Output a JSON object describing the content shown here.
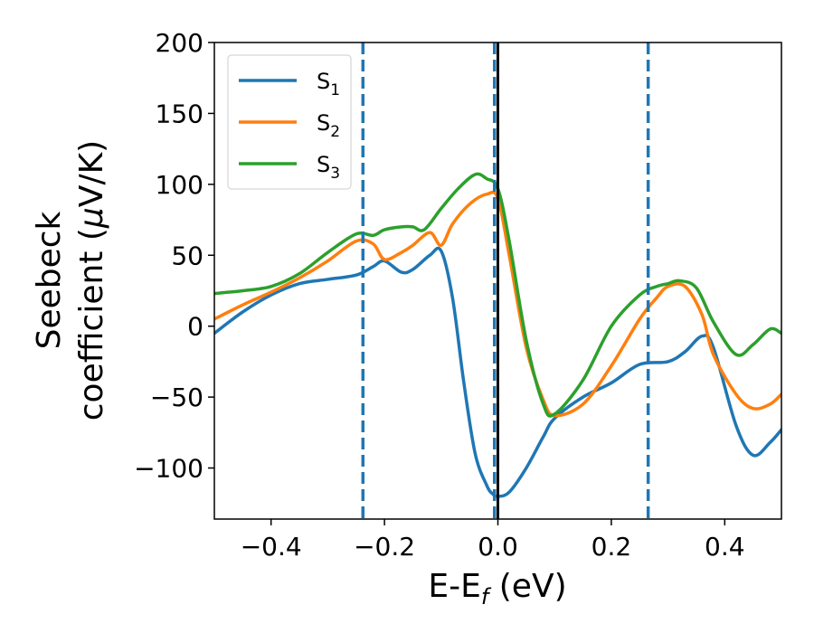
{
  "chart_data": {
    "type": "line",
    "xlabel": "E-E",
    "xlabel_sub": "f",
    "xlabel_unit": " (eV)",
    "ylabel_line1": "Seebeck",
    "ylabel_line2": "coefficient  (",
    "ylabel_mu": "μ",
    "ylabel_unit": "V/K)",
    "xlim": [
      -0.5,
      0.5
    ],
    "ylim": [
      -136,
      200
    ],
    "xticks": [
      -0.4,
      -0.2,
      0.0,
      0.2,
      0.4
    ],
    "xtick_labels": [
      "−0.4",
      "−0.2",
      "0.0",
      "0.2",
      "0.4"
    ],
    "yticks": [
      -100,
      -50,
      0,
      50,
      100,
      150,
      200
    ],
    "ytick_labels": [
      "−100",
      "−50",
      "0",
      "50",
      "100",
      "150",
      "200"
    ],
    "grid": false,
    "legend_position": "top-left",
    "vlines": [
      {
        "x": -0.238,
        "style": "dashed",
        "color": "#1f77b4"
      },
      {
        "x": -0.006,
        "style": "dashed",
        "color": "#1f77b4"
      },
      {
        "x": 0.0,
        "style": "solid",
        "color": "#000000"
      },
      {
        "x": 0.265,
        "style": "dashed",
        "color": "#1f77b4"
      }
    ],
    "series": [
      {
        "name": "S",
        "sub": "1",
        "color": "#1f77b4",
        "x": [
          -0.5,
          -0.45,
          -0.4,
          -0.35,
          -0.3,
          -0.25,
          -0.22,
          -0.2,
          -0.17,
          -0.15,
          -0.12,
          -0.1,
          -0.08,
          -0.06,
          -0.04,
          -0.02,
          -0.01,
          0.0,
          0.02,
          0.05,
          0.08,
          0.1,
          0.15,
          0.2,
          0.25,
          0.3,
          0.33,
          0.36,
          0.38,
          0.42,
          0.45,
          0.48,
          0.5
        ],
        "y": [
          -5,
          10,
          22,
          30,
          33,
          36,
          42,
          46,
          38,
          40,
          50,
          53,
          20,
          -40,
          -90,
          -112,
          -118,
          -120,
          -117,
          -100,
          -78,
          -65,
          -50,
          -40,
          -27,
          -25,
          -18,
          -7,
          -15,
          -70,
          -91,
          -82,
          -73
        ]
      },
      {
        "name": "S",
        "sub": "2",
        "color": "#ff7f0e",
        "x": [
          -0.5,
          -0.45,
          -0.4,
          -0.35,
          -0.3,
          -0.25,
          -0.22,
          -0.2,
          -0.17,
          -0.15,
          -0.12,
          -0.1,
          -0.08,
          -0.05,
          -0.02,
          0.0,
          0.02,
          0.05,
          0.08,
          0.1,
          0.15,
          0.2,
          0.25,
          0.28,
          0.3,
          0.33,
          0.36,
          0.38,
          0.42,
          0.45,
          0.48,
          0.5
        ],
        "y": [
          5,
          15,
          24,
          34,
          46,
          60,
          58,
          47,
          52,
          57,
          66,
          57,
          72,
          86,
          93,
          90,
          50,
          -15,
          -52,
          -63,
          -55,
          -28,
          5,
          20,
          28,
          28,
          8,
          -20,
          -48,
          -58,
          -55,
          -48
        ]
      },
      {
        "name": "S",
        "sub": "3",
        "color": "#2ca02c",
        "x": [
          -0.5,
          -0.45,
          -0.4,
          -0.35,
          -0.3,
          -0.25,
          -0.22,
          -0.2,
          -0.17,
          -0.15,
          -0.13,
          -0.1,
          -0.07,
          -0.04,
          -0.02,
          0.0,
          0.02,
          0.05,
          0.08,
          0.1,
          0.15,
          0.2,
          0.25,
          0.28,
          0.3,
          0.32,
          0.35,
          0.38,
          0.42,
          0.45,
          0.48,
          0.5
        ],
        "y": [
          23,
          25,
          28,
          37,
          52,
          65,
          64,
          68,
          70,
          70,
          68,
          83,
          97,
          107,
          104,
          97,
          60,
          -10,
          -55,
          -62,
          -38,
          0,
          22,
          28,
          30,
          32,
          27,
          3,
          -20,
          -13,
          -2,
          -5
        ]
      }
    ]
  }
}
